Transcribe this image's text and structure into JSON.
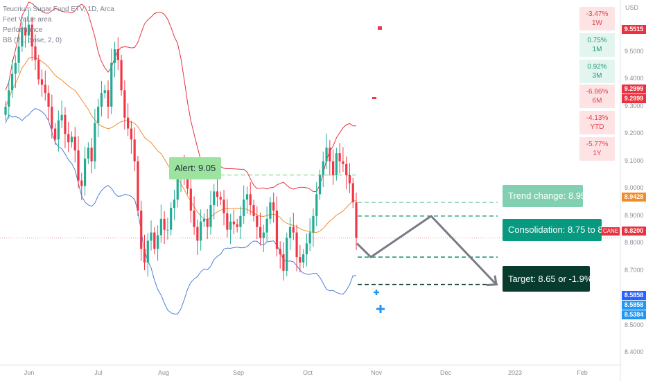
{
  "legend": {
    "line1": "Teucrium Sugar Fund ETV, 1D, Arca",
    "line2": "Feet Value area",
    "line3": "Performance",
    "line4": "BB (21, close, 2, 0)"
  },
  "axis": {
    "currency": "USD",
    "y_ticks": [
      "9.5000",
      "9.4000",
      "9.3000",
      "9.2000",
      "9.1000",
      "9.0000",
      "8.9000",
      "8.8000",
      "8.7000",
      "8.6000",
      "8.5000",
      "8.4000"
    ],
    "x_ticks": [
      "Jun",
      "Jul",
      "Aug",
      "Sep",
      "Oct",
      "Nov",
      "Dec",
      "2023",
      "Feb"
    ]
  },
  "performance": [
    {
      "value": "-3.47%",
      "period": "1W",
      "sign": "neg"
    },
    {
      "value": "0.75%",
      "period": "1M",
      "sign": "pos"
    },
    {
      "value": "0.92%",
      "period": "3M",
      "sign": "pos"
    },
    {
      "value": "-6.86%",
      "period": "6M",
      "sign": "neg"
    },
    {
      "value": "-4.13%",
      "period": "YTD",
      "sign": "neg"
    },
    {
      "value": "-5.77%",
      "period": "1Y",
      "sign": "neg"
    }
  ],
  "price_tags": [
    {
      "label": "9.5515",
      "color": "#e8323f"
    },
    {
      "label": "9.2999",
      "color": "#e8323f"
    },
    {
      "label": "9.2999",
      "color": "#e8323f"
    },
    {
      "label": "8.9428",
      "color": "#f08c2a"
    },
    {
      "label": "8.8200",
      "color": "#e8323f"
    },
    {
      "label": "8.5858",
      "color": "#2962ff"
    },
    {
      "label": "8.5858",
      "color": "#2196f3"
    },
    {
      "label": "8.5384",
      "color": "#2196f3"
    }
  ],
  "cane_tag": "CANE",
  "annotations": {
    "alert": "Alert: 9.05",
    "trend_change": "Trend change: 8.95",
    "consolidation": "Consolidation: 8.75 to 8.",
    "target": "Target: 8.65 or -1.9%"
  },
  "colors": {
    "up": "#22ab94",
    "down": "#f23645",
    "bb_upper": "#e8323f",
    "bb_lower": "#4a7fd9",
    "bb_basis": "#f08c2a",
    "projection": "#787b86"
  },
  "chart_data": {
    "type": "candlestick",
    "title": "Teucrium Sugar Fund ETV, 1D, Arca",
    "ylabel": "USD",
    "ylim": [
      8.34,
      9.69
    ],
    "x_ticks": [
      "Jun",
      "Jul",
      "Aug",
      "Sep",
      "Oct",
      "Nov",
      "Dec",
      "2023",
      "Feb"
    ],
    "last_price": 8.82,
    "candles_close": [
      9.3,
      9.36,
      9.42,
      9.46,
      9.52,
      9.59,
      9.56,
      9.6,
      9.52,
      9.47,
      9.4,
      9.38,
      9.35,
      9.3,
      9.22,
      9.18,
      9.25,
      9.27,
      9.2,
      9.17,
      9.19,
      9.14,
      9.03,
      9.01,
      9.11,
      9.15,
      9.1,
      9.24,
      9.3,
      9.35,
      9.36,
      9.3,
      9.46,
      9.51,
      9.47,
      9.36,
      9.26,
      9.22,
      9.18,
      9.1,
      8.92,
      8.78,
      8.73,
      8.81,
      8.84,
      8.78,
      8.83,
      8.89,
      8.85,
      8.85,
      8.93,
      8.96,
      9.04,
      9.08,
      9.05,
      9.0,
      8.92,
      8.86,
      8.81,
      8.88,
      8.89,
      8.86,
      8.94,
      8.99,
      8.97,
      8.96,
      8.91,
      8.85,
      8.88,
      8.87,
      8.86,
      8.9,
      8.96,
      8.98,
      8.94,
      8.9,
      8.86,
      8.82,
      8.84,
      8.89,
      8.95,
      8.92,
      8.78,
      8.76,
      8.7,
      8.82,
      8.86,
      8.84,
      8.75,
      8.73,
      8.76,
      8.8,
      8.84,
      8.9,
      8.98,
      9.05,
      9.1,
      9.15,
      9.1,
      9.05,
      9.13,
      9.1,
      9.09,
      9.05,
      9.02,
      8.95,
      8.82
    ],
    "bollinger": {
      "upper_last": 9.2999,
      "basis_last": 8.9428,
      "lower_last": 8.5858
    },
    "levels": {
      "alert": 9.05,
      "trend_change": 8.95,
      "consolidation_top": 8.9,
      "consolidation_bottom": 8.75,
      "target": 8.65
    },
    "projection_path": [
      8.8,
      8.75,
      8.9,
      8.65
    ]
  }
}
